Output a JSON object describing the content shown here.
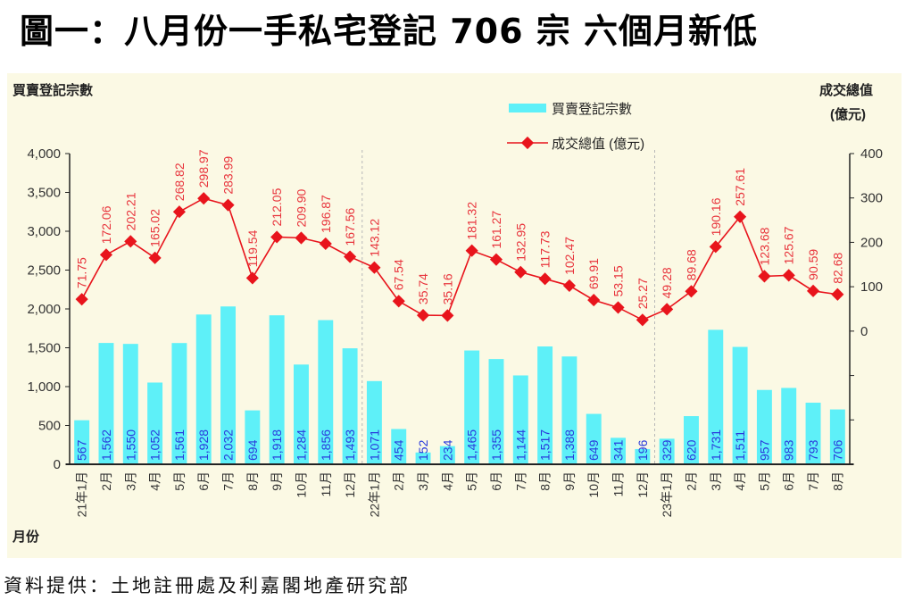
{
  "title": "圖一：八月份一手私宅登記 706 宗  六個月新低",
  "source": "資料提供：土地註冊處及利嘉閣地產研究部",
  "chart_data": {
    "type": "bar+line",
    "title": "圖一：八月份一手私宅登記 706 宗  六個月新低",
    "xlabel": "月份",
    "ylabel_left": "買賣登記宗數",
    "ylabel_right": [
      "成交總值",
      "(億元)"
    ],
    "categories": [
      "21年1月",
      "2月",
      "3月",
      "4月",
      "5月",
      "6月",
      "7月",
      "8月",
      "9月",
      "10月",
      "11月",
      "12月",
      "22年1月",
      "2月",
      "3月",
      "4月",
      "5月",
      "6月",
      "7月",
      "8月",
      "9月",
      "10月",
      "11月",
      "12月",
      "23年1月",
      "2月",
      "3月",
      "4月",
      "5月",
      "6月",
      "7月",
      "8月"
    ],
    "series": [
      {
        "name": "買賣登記宗數",
        "type": "bar",
        "axis": "left",
        "color": "#5ef0f8",
        "values": [
          567,
          1562,
          1550,
          1052,
          1561,
          1928,
          2032,
          694,
          1918,
          1284,
          1856,
          1493,
          1071,
          454,
          152,
          234,
          1465,
          1355,
          1144,
          1517,
          1388,
          649,
          341,
          196,
          329,
          620,
          1731,
          1511,
          957,
          983,
          793,
          706
        ],
        "labels": [
          "567",
          "1,562",
          "1,550",
          "1,052",
          "1,561",
          "1,928",
          "2,032",
          "694",
          "1,918",
          "1,284",
          "1,856",
          "1,493",
          "1,071",
          "454",
          "152",
          "234",
          "1,465",
          "1,355",
          "1,144",
          "1,517",
          "1,388",
          "649",
          "341",
          "196",
          "329",
          "620",
          "1,731",
          "1,511",
          "957",
          "983",
          "793",
          "706"
        ]
      },
      {
        "name": "成交總值 (億元)",
        "type": "line",
        "axis": "right",
        "color": "#e8141c",
        "values": [
          71.75,
          172.06,
          202.21,
          165.02,
          268.82,
          298.97,
          283.99,
          119.54,
          212.05,
          209.9,
          196.87,
          167.56,
          143.12,
          67.54,
          35.74,
          35.16,
          181.32,
          161.27,
          132.95,
          117.73,
          102.47,
          69.91,
          53.15,
          25.27,
          49.28,
          89.68,
          190.16,
          257.61,
          123.68,
          125.67,
          90.59,
          82.68
        ],
        "labels": [
          "71.75",
          "172.06",
          "202.21",
          "165.02",
          "268.82",
          "298.97",
          "283.99",
          "119.54",
          "212.05",
          "209.90",
          "196.87",
          "167.56",
          "143.12",
          "67.54",
          "35.74",
          "35.16",
          "181.32",
          "161.27",
          "132.95",
          "117.73",
          "102.47",
          "69.91",
          "53.15",
          "25.27",
          "49.28",
          "89.68",
          "190.16",
          "257.61",
          "123.68",
          "125.67",
          "90.59",
          "82.68"
        ]
      }
    ],
    "ylim_left": [
      0,
      4000
    ],
    "yticks_left": [
      "0",
      "500",
      "1,000",
      "1,500",
      "2,000",
      "2,500",
      "3,000",
      "3,500",
      "4,000"
    ],
    "ylim_right": [
      -300,
      400
    ],
    "yticks_right": [
      "",
      "",
      "",
      "0",
      "100",
      "200",
      "300",
      "400"
    ],
    "year_dividers_after": [
      11,
      23
    ],
    "legend_placement": "top-center",
    "grid": false
  }
}
